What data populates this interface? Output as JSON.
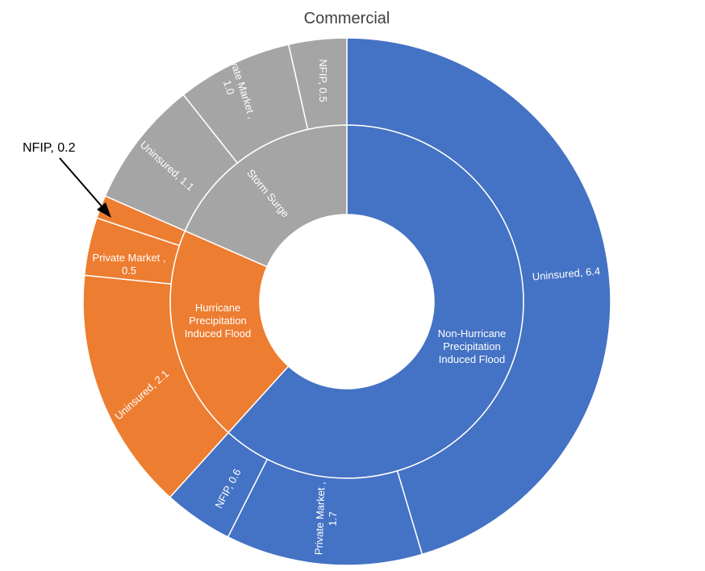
{
  "chart_data": {
    "type": "sunburst",
    "title": "Commercial",
    "colors": {
      "Non-Hurricane Precipitation Induced Flood": "#4472C4",
      "Hurricane Precipitation Induced Flood": "#ED7D31",
      "Storm Surge": "#A5A5A5"
    },
    "categories": [
      {
        "name": "Non-Hurricane Precipitation Induced Flood",
        "label_lines": [
          "Non-Hurricane",
          "Precipitation",
          "Induced Flood"
        ],
        "children": [
          {
            "name": "Uninsured",
            "value": 6.4,
            "label_lines": [
              "Uninsured,  6.4"
            ]
          },
          {
            "name": "Private Market",
            "value": 1.7,
            "label_lines": [
              "Private Market ,",
              "1.7"
            ]
          },
          {
            "name": "NFIP",
            "value": 0.6,
            "label_lines": [
              "NFIP, 0.6"
            ]
          }
        ]
      },
      {
        "name": "Hurricane Precipitation Induced Flood",
        "label_lines": [
          "Hurricane",
          "Precipitation",
          "Induced Flood"
        ],
        "children": [
          {
            "name": "Uninsured",
            "value": 2.1,
            "label_lines": [
              "Uninsured,  2.1"
            ]
          },
          {
            "name": "Private Market",
            "value": 0.5,
            "label_lines": [
              "Private Market ,",
              "0.5"
            ]
          },
          {
            "name": "NFIP",
            "value": 0.2,
            "label_lines": []
          }
        ]
      },
      {
        "name": "Storm Surge",
        "label_lines": [
          "Storm Surge"
        ],
        "children": [
          {
            "name": "Uninsured",
            "value": 1.1,
            "label_lines": [
              "Uninsured,  1.1"
            ]
          },
          {
            "name": "Private Market",
            "value": 1.0,
            "label_lines": [
              "Private Market ,",
              "1.0"
            ]
          },
          {
            "name": "NFIP",
            "value": 0.5,
            "label_lines": [
              "NFIP,  0.5"
            ]
          }
        ]
      }
    ],
    "annotation": {
      "text": "NFIP, 0.2",
      "target": "Hurricane Precipitation Induced Flood / NFIP"
    }
  }
}
